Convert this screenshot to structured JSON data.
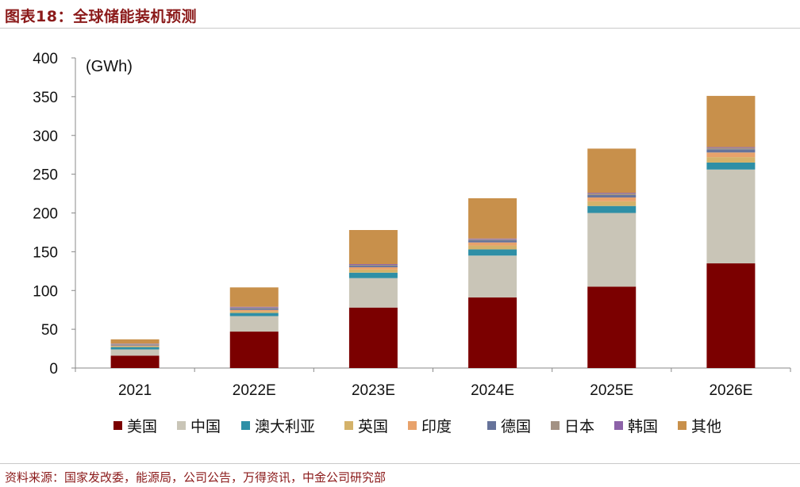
{
  "header": {
    "title": "图表18：全球储能装机预测"
  },
  "footer": {
    "source": "资料来源：国家发改委，能源局，公司公告，万得资讯，中金公司研究部"
  },
  "chart_data": {
    "type": "bar",
    "stacked": true,
    "unit_label": "(GWh)",
    "ylim": [
      0,
      400
    ],
    "yticks": [
      0,
      50,
      100,
      150,
      200,
      250,
      300,
      350,
      400
    ],
    "categories": [
      "2021",
      "2022E",
      "2023E",
      "2024E",
      "2025E",
      "2026E"
    ],
    "legend_position": "bottom",
    "series": [
      {
        "name": "美国",
        "color": "#7b0000",
        "values": [
          16,
          47,
          78,
          91,
          105,
          135
        ]
      },
      {
        "name": "中国",
        "color": "#c9c5b7",
        "values": [
          8,
          20,
          38,
          54,
          95,
          121
        ]
      },
      {
        "name": "澳大利亚",
        "color": "#2e8fa6",
        "values": [
          3,
          4,
          7,
          8,
          9,
          9
        ]
      },
      {
        "name": "英国",
        "color": "#d4b26a",
        "values": [
          1,
          2,
          4,
          5,
          6,
          7
        ]
      },
      {
        "name": "印度",
        "color": "#e8a26b",
        "values": [
          1,
          2,
          3,
          4,
          5,
          6
        ]
      },
      {
        "name": "德国",
        "color": "#66739a",
        "values": [
          1,
          2,
          2,
          3,
          3,
          4
        ]
      },
      {
        "name": "日本",
        "color": "#a39284",
        "values": [
          1,
          1,
          1,
          1,
          2,
          2
        ]
      },
      {
        "name": "韩国",
        "color": "#8c62a8",
        "values": [
          0.5,
          1,
          1,
          1,
          1,
          1
        ]
      },
      {
        "name": "其他",
        "color": "#c8904b",
        "values": [
          5.5,
          25,
          44,
          52,
          57,
          66
        ]
      }
    ]
  }
}
